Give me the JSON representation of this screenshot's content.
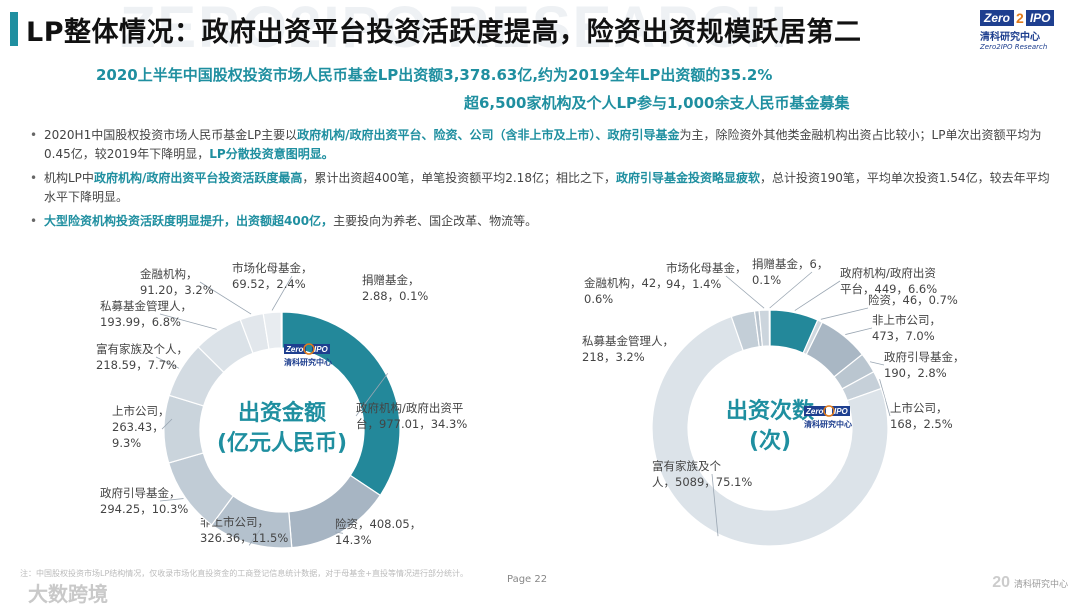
{
  "watermark": "ZERO2IPO RESEARCH",
  "title": "LP整体情况：政府出资平台投资活跃度提高，险资出资规模跃居第二",
  "logo": {
    "zero": "Zero",
    "two": "2",
    "ipo": "IPO",
    "cn": "清科研究中心",
    "en": "Zero2IPO Research"
  },
  "highlights": [
    "2020上半年中国股权投资市场人民币基金LP出资额3,378.63亿,约为2019全年LP出资额的35.2%",
    "超6,500家机构及个人LP参与1,000余支人民币基金募集"
  ],
  "bullets": [
    {
      "segments": [
        {
          "t": "2020H1中国股权投资市场人民币基金LP主要以",
          "em": false
        },
        {
          "t": "政府机构/政府出资平台、险资、公司（含非上市及上市）、政府引导基金",
          "em": true
        },
        {
          "t": "为主，除险资外其他类金融机构出资占比较小；LP单次出资额平均为0.45亿，较2019年下降明显，",
          "em": false
        },
        {
          "t": "LP分散投资意图明显。",
          "em": true
        }
      ]
    },
    {
      "segments": [
        {
          "t": "机构LP中",
          "em": false
        },
        {
          "t": "政府机构/政府出资平台投资活跃度最高",
          "em": true
        },
        {
          "t": "，累计出资超400笔，单笔投资额平均2.18亿；相比之下，",
          "em": false
        },
        {
          "t": "政府引导基金投资略显疲软",
          "em": true
        },
        {
          "t": "，总计投资190笔，平均单次投资1.54亿，较去年平均水平下降明显。",
          "em": false
        }
      ]
    },
    {
      "segments": [
        {
          "t": "大型险资机构投资活跃度明显提升，出资额超400亿，",
          "em": true
        },
        {
          "t": "主要投向为养老、国企改革、物流等。",
          "em": false
        }
      ]
    }
  ],
  "chart_data": [
    {
      "type": "pie",
      "donut": true,
      "center_label": [
        "出资金额",
        "(亿元人民币)"
      ],
      "unit": "亿元人民币",
      "categories": [
        "政府机构/政府出资平台",
        "险资",
        "非上市公司",
        "政府引导基金",
        "上市公司",
        "富有家族及个人",
        "私募基金管理人",
        "金融机构",
        "市场化母基金",
        "捐赠基金"
      ],
      "values": [
        977.01,
        408.05,
        326.36,
        294.25,
        263.43,
        218.59,
        193.99,
        91.2,
        69.52,
        2.88
      ],
      "percents": [
        "34.3%",
        "14.3%",
        "11.5%",
        "10.3%",
        "9.3%",
        "7.7%",
        "6.8%",
        "3.2%",
        "2.4%",
        "0.1%"
      ],
      "labels": [
        [
          "政府机构/政府出资平",
          "台，977.01，34.3%"
        ],
        [
          "险资，408.05，",
          "14.3%"
        ],
        [
          "非上市公司，",
          "326.36，11.5%"
        ],
        [
          "政府引导基金，",
          "294.25，10.3%"
        ],
        [
          "上市公司，",
          "263.43，",
          "9.3%"
        ],
        [
          "富有家族及个人，",
          "218.59，7.7%"
        ],
        [
          "私募基金管理人，",
          "193.99，6.8%"
        ],
        [
          "金融机构，",
          "91.20，3.2%"
        ],
        [
          "市场化母基金，",
          "69.52，2.4%"
        ],
        [
          "捐赠基金，",
          "2.88，0.1%"
        ]
      ]
    },
    {
      "type": "pie",
      "donut": true,
      "center_label": [
        "出资次数",
        "(次)"
      ],
      "unit": "次",
      "categories": [
        "政府机构/政府出资平台",
        "险资",
        "非上市公司",
        "政府引导基金",
        "上市公司",
        "富有家族及个人",
        "私募基金管理人",
        "金融机构",
        "市场化母基金",
        "捐赠基金"
      ],
      "values": [
        449,
        46,
        473,
        190,
        168,
        5089,
        218,
        42,
        94,
        6
      ],
      "percents": [
        "6.6%",
        "0.7%",
        "7.0%",
        "2.8%",
        "2.5%",
        "75.1%",
        "3.2%",
        "0.6%",
        "1.4%",
        "0.1%"
      ],
      "labels": [
        [
          "政府机构/政府出资",
          "平台，449，6.6%"
        ],
        [
          "险资，46，0.7%"
        ],
        [
          "非上市公司，",
          "473，7.0%"
        ],
        [
          "政府引导基金，",
          "190，2.8%"
        ],
        [
          "上市公司，",
          "168，2.5%"
        ],
        [
          "富有家族及个",
          "人，5089，75.1%"
        ],
        [
          "私募基金管理人，",
          "218，3.2%"
        ],
        [
          "金融机构，42，",
          "0.6%"
        ],
        [
          "市场化母基金，",
          "94，1.4%"
        ],
        [
          "捐赠基金，6，",
          "0.1%"
        ]
      ]
    }
  ],
  "colors": {
    "accent": "#1f8fa0",
    "ring": [
      "#23889a",
      "#a7b5c3",
      "#b4c1cd",
      "#c1ccd6",
      "#cad4dc",
      "#d3dbe2",
      "#dbe2e8",
      "#e2e7ec",
      "#e8ecf0",
      "#eef1f4"
    ],
    "ring2": [
      "#23889a",
      "#cfd8df",
      "#a9b7c4",
      "#bac6d0",
      "#c6d0d9",
      "#dce3e9",
      "#c3ced7",
      "#b9c4ce",
      "#ccd5dd",
      "#e3e8ed"
    ]
  },
  "footer": {
    "note": "注：中国股权投资市场LP结构情况，仅收录市场化直投资金的工商登记信息统计数据，对于母基金+直投等情况进行部分统计。",
    "page": "Page  22",
    "brand": "大数跨境",
    "logo_mark": "20",
    "logo_text": "清科研究中心"
  }
}
